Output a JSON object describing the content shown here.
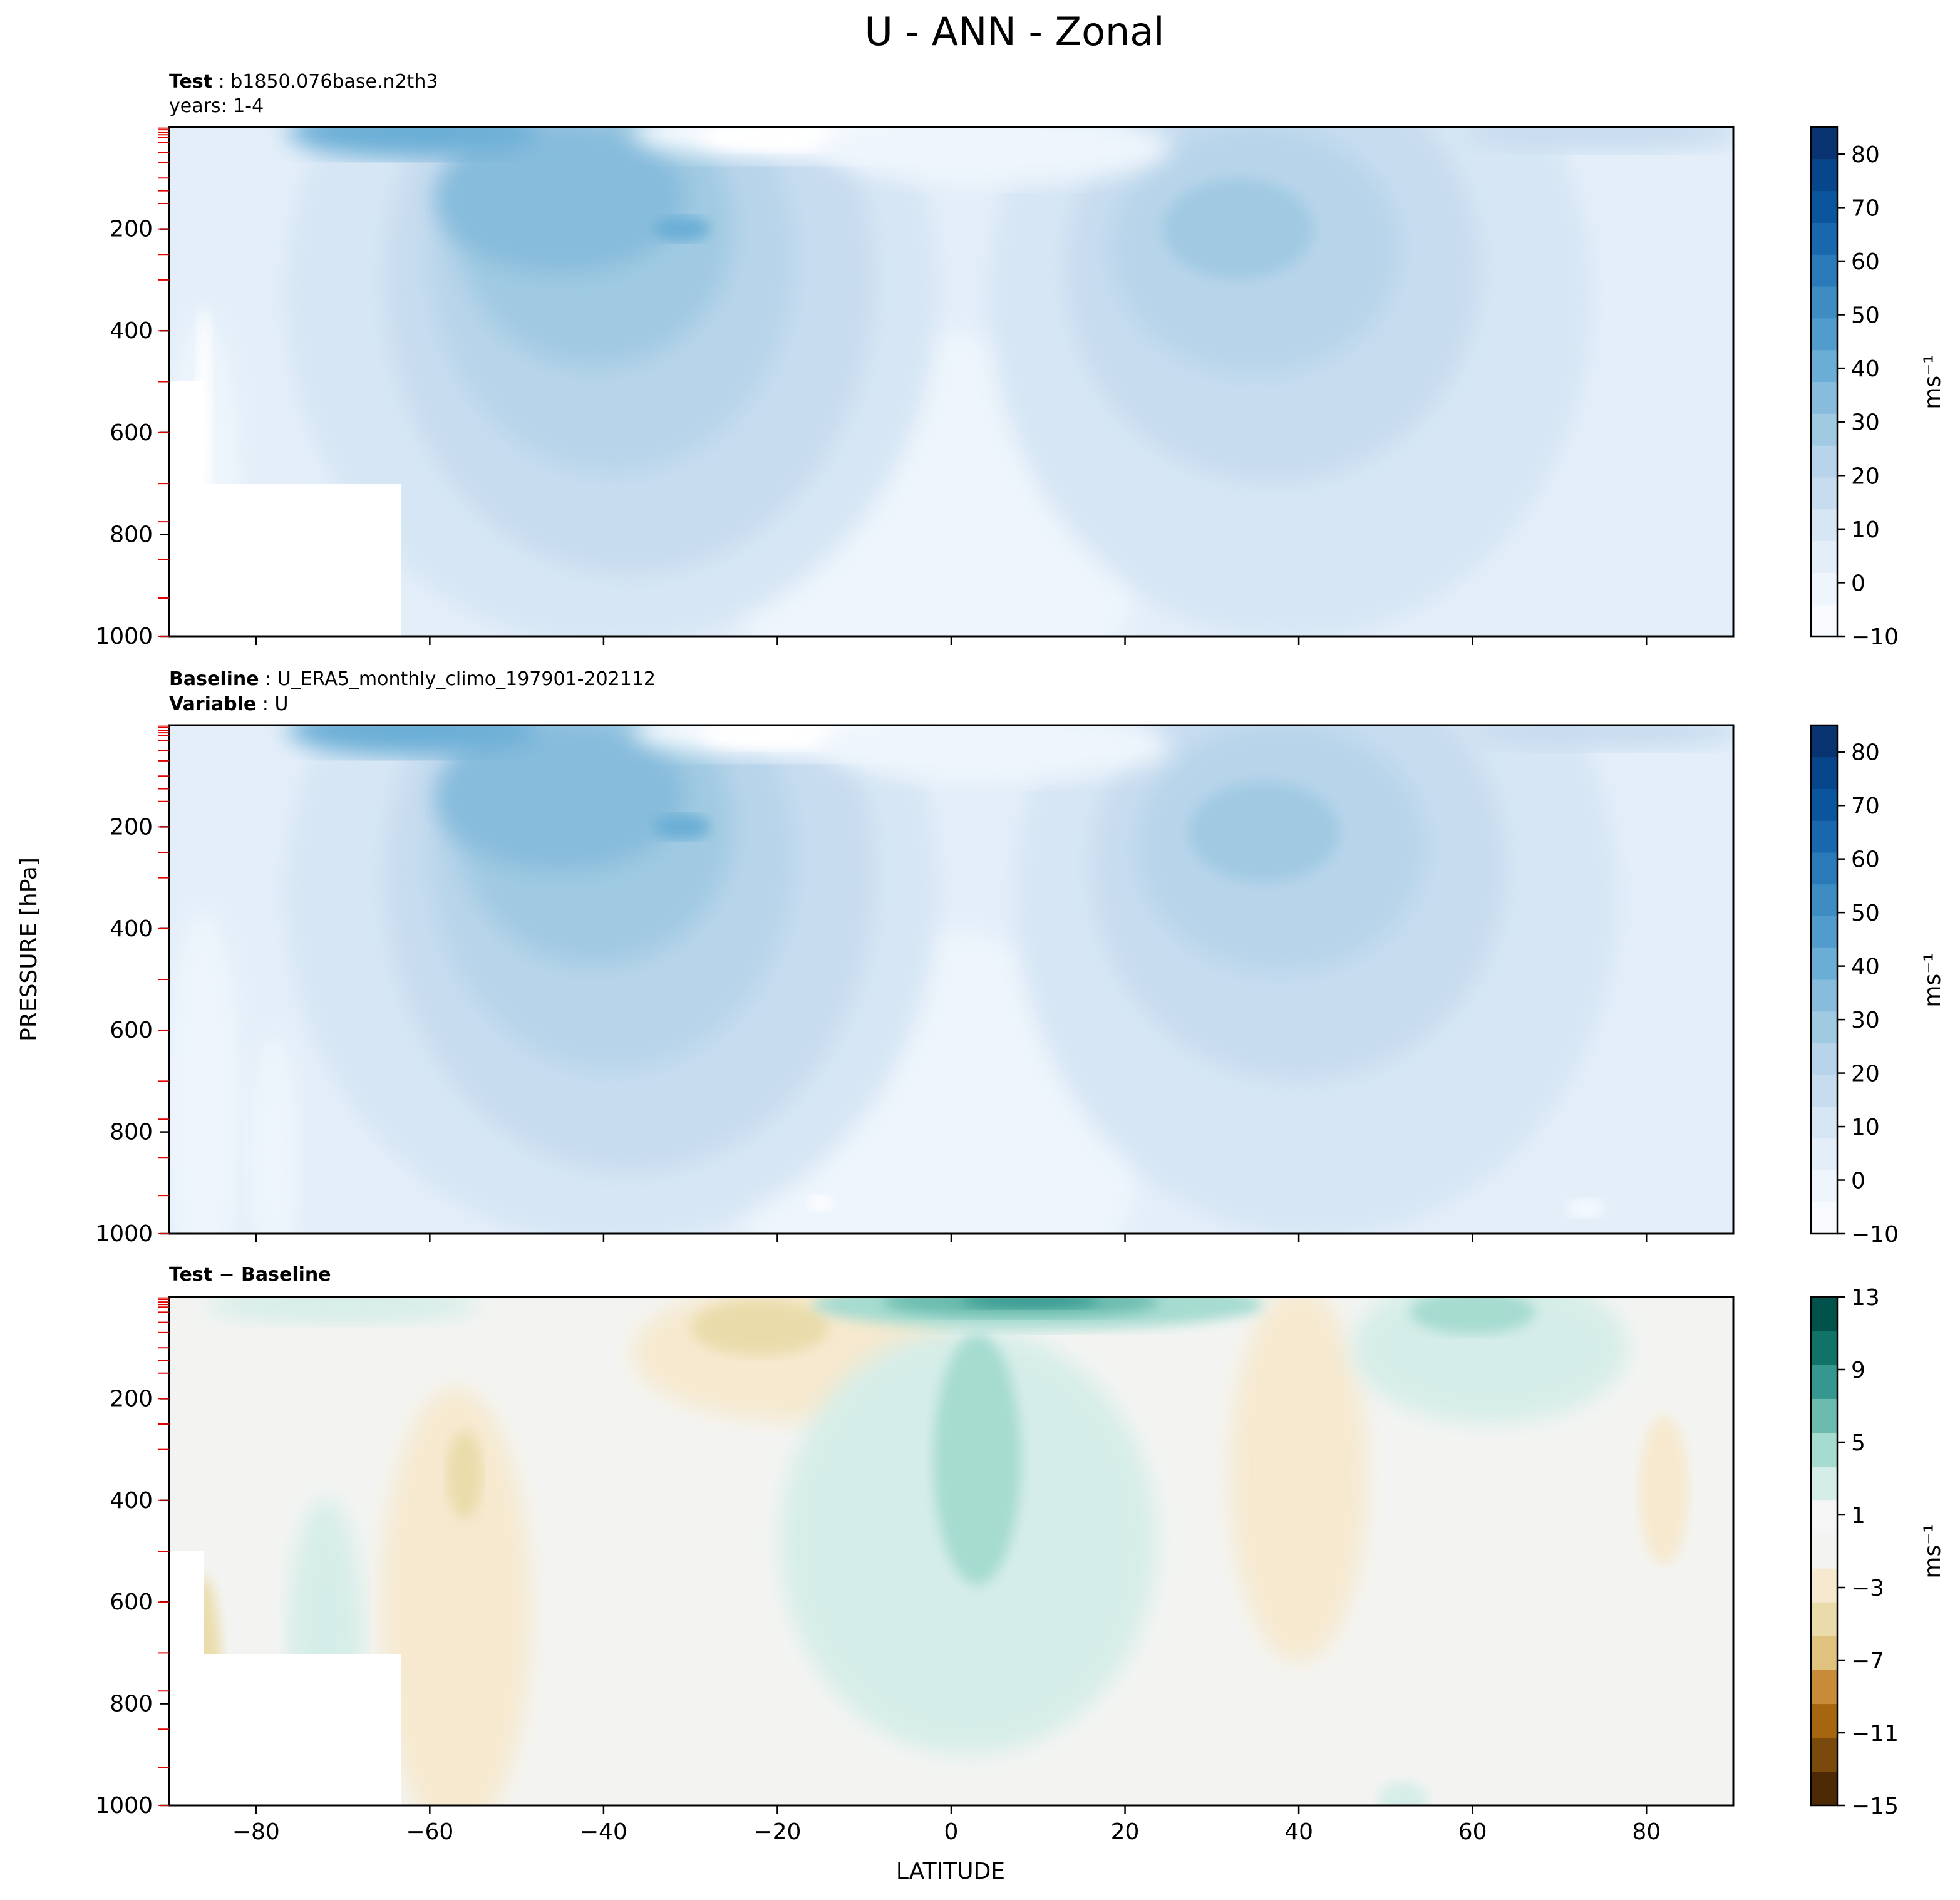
{
  "figure": {
    "title": "U - ANN - Zonal",
    "ylabel": "PRESSURE [hPa]",
    "xlabel": "LATITUDE"
  },
  "panels": [
    {
      "id": "test",
      "label_bold_1": "Test",
      "label_value_1": "b1850.076base.n2th3",
      "label_line_2": "years: 1-4",
      "colorbar_unit": "ms⁻¹"
    },
    {
      "id": "baseline",
      "label_bold_1": "Baseline",
      "label_value_1": "U_ERA5_monthly_climo_197901-202112",
      "label_bold_2": "Variable",
      "label_value_2": "U",
      "colorbar_unit": "ms⁻¹"
    },
    {
      "id": "diff",
      "label_bold_1": "Test − Baseline",
      "colorbar_unit": "ms⁻¹"
    }
  ],
  "colors": {
    "blues_levels": [
      "#f7fbff",
      "#eef5fc",
      "#e3eef9",
      "#d6e6f4",
      "#c7dcef",
      "#b7d4ea",
      "#a0cae2",
      "#87bcdc",
      "#6aaed6",
      "#519ccc",
      "#3d8dc3",
      "#2a7ab9",
      "#1967ac",
      "#0b559f",
      "#08468b",
      "#083370"
    ],
    "brbg_levels": [
      "#4c2a05",
      "#7a4a0d",
      "#a5660f",
      "#c88b3a",
      "#dfc27d",
      "#eadcaa",
      "#f6e9cf",
      "#f3f4f2",
      "#f5f5f5",
      "#d5ede8",
      "#a6dbd0",
      "#6bbcaf",
      "#35978f",
      "#117268",
      "#00524a"
    ]
  },
  "chart_data": [
    {
      "type": "heatmap",
      "title": "Test: b1850.076base.n2th3, years: 1-4",
      "xlabel": "",
      "ylabel": "PRESSURE [hPa]",
      "x_ticks": [
        -80,
        -60,
        -40,
        -20,
        0,
        20,
        40,
        60,
        80
      ],
      "y_ticks": [
        200,
        400,
        600,
        800,
        1000
      ],
      "xlim": [
        -90,
        90
      ],
      "ylim": [
        1000,
        0
      ],
      "colorbar": {
        "label": "ms⁻¹",
        "ticks": [
          -10,
          0,
          10,
          20,
          30,
          40,
          50,
          60,
          70,
          80
        ],
        "range": [
          -10,
          85
        ],
        "colormap": "Blues"
      },
      "features": [
        {
          "name": "southern jet core",
          "lat": -31,
          "pressure": 200,
          "value": 35
        },
        {
          "name": "northern jet core",
          "lat": 33,
          "pressure": 200,
          "value": 30
        },
        {
          "name": "easterlies near top",
          "lat": -15,
          "pressure": 10,
          "value": -10
        }
      ]
    },
    {
      "type": "heatmap",
      "title": "Baseline: U_ERA5_monthly_climo_197901-202112, Variable: U",
      "xlabel": "",
      "ylabel": "PRESSURE [hPa]",
      "x_ticks": [
        -80,
        -60,
        -40,
        -20,
        0,
        20,
        40,
        60,
        80
      ],
      "y_ticks": [
        200,
        400,
        600,
        800,
        1000
      ],
      "xlim": [
        -90,
        90
      ],
      "ylim": [
        1000,
        0
      ],
      "colorbar": {
        "label": "ms⁻¹",
        "ticks": [
          -10,
          0,
          10,
          20,
          30,
          40,
          50,
          60,
          70,
          80
        ],
        "range": [
          -10,
          85
        ],
        "colormap": "Blues"
      },
      "features": [
        {
          "name": "southern jet core",
          "lat": -31,
          "pressure": 200,
          "value": 40
        },
        {
          "name": "northern jet core",
          "lat": 36,
          "pressure": 210,
          "value": 35
        },
        {
          "name": "easterlies near top",
          "lat": -12,
          "pressure": 10,
          "value": -8
        }
      ]
    },
    {
      "type": "heatmap",
      "title": "Test − Baseline",
      "xlabel": "LATITUDE",
      "ylabel": "PRESSURE [hPa]",
      "x_ticks": [
        -80,
        -60,
        -40,
        -20,
        0,
        20,
        40,
        60,
        80
      ],
      "y_ticks": [
        200,
        400,
        600,
        800,
        1000
      ],
      "xlim": [
        -90,
        90
      ],
      "ylim": [
        1000,
        0
      ],
      "colorbar": {
        "label": "ms⁻¹",
        "ticks": [
          -15,
          -11,
          -7,
          -3,
          1,
          5,
          9,
          13
        ],
        "range": [
          -15,
          13
        ],
        "colormap": "BrBG"
      },
      "features": [
        {
          "name": "positive max near top",
          "lat": 8,
          "pressure": 15,
          "value": 12
        },
        {
          "name": "equatorial positive",
          "lat": 0,
          "pressure": 300,
          "value": 4
        },
        {
          "name": "subtropical negative",
          "lat": -22,
          "pressure": 60,
          "value": -4
        },
        {
          "name": "southern negative",
          "lat": -57,
          "pressure": 330,
          "value": -3
        }
      ]
    }
  ]
}
